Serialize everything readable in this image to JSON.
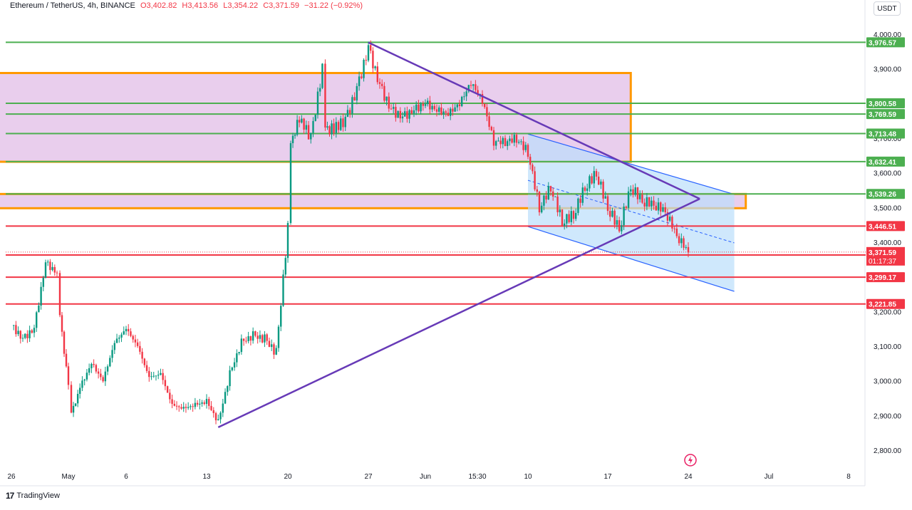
{
  "header": {
    "symbol": "Ethereum / TetherUS, 4h, BINANCE",
    "open": "O3,402.82",
    "high": "H3,413.56",
    "low": "L3,354.22",
    "close": "C3,371.59",
    "change": "−31.22 (−0.92%)",
    "currency": "USDT"
  },
  "footer": {
    "brand": "TradingView"
  },
  "colors": {
    "up": "#089981",
    "down": "#f23645",
    "support_resistance_green": "#4caf50",
    "support_resistance_red": "#f23645",
    "zone_fill": "#e1bee7",
    "zone_border": "#ff9800",
    "channel_fill": "#bbdefb",
    "channel_border": "#2962ff",
    "triangle_line": "#673ab7"
  },
  "chart_data": {
    "type": "candlestick",
    "ylim": [
      2770,
      4030
    ],
    "y_ticks": [
      "4,000.00",
      "3,900.00",
      "3,800.00",
      "3,700.00",
      "3,600.00",
      "3,500.00",
      "3,400.00",
      "3,300.00",
      "3,200.00",
      "3,100.00",
      "3,000.00",
      "2,900.00",
      "2,800.00"
    ],
    "x_ticks": [
      "26",
      "May",
      "6",
      "13",
      "20",
      "27",
      "Jun",
      "15:30",
      "10",
      "17",
      "24",
      "Jul",
      "8"
    ],
    "horizontal_levels": [
      {
        "value": 3976.57,
        "label": "3,976.57",
        "color": "green"
      },
      {
        "value": 3800.58,
        "label": "3,800.58",
        "color": "green"
      },
      {
        "value": 3769.59,
        "label": "3,769.59",
        "color": "green"
      },
      {
        "value": 3713.48,
        "label": "3,713.48",
        "color": "green"
      },
      {
        "value": 3632.41,
        "label": "3,632.41",
        "color": "green"
      },
      {
        "value": 3539.26,
        "label": "3,539.26",
        "color": "green"
      },
      {
        "value": 3446.51,
        "label": "3,446.51",
        "color": "red"
      },
      {
        "value": 3363.04,
        "label": "3,363.04",
        "color": "red"
      },
      {
        "value": 3299.17,
        "label": "3,299.17",
        "color": "red"
      },
      {
        "value": 3221.85,
        "label": "3,221.85",
        "color": "red"
      }
    ],
    "current_price": {
      "value": 3371.59,
      "label": "3,371.59",
      "countdown": "01:17:37"
    },
    "zones": [
      {
        "name": "upper supply box",
        "x_start": "Apr 19",
        "x_end": "Jun 19",
        "y_high": 3888,
        "y_low": 3632
      },
      {
        "name": "lower zone",
        "x_start": "Apr 23",
        "x_end": "Jun 29",
        "y_high": 3539,
        "y_low": 3498
      }
    ],
    "channel": {
      "x_start": "Jun 10",
      "x_end": "Jun 28",
      "top_start": 3712,
      "top_end": 3538,
      "bottom_start": 3445,
      "bottom_end": 3258
    },
    "trendlines": [
      {
        "name": "descending",
        "from": {
          "x": "May 27",
          "y": 3976
        },
        "to": {
          "x": "Jun 25",
          "y": 3525
        }
      },
      {
        "name": "ascending",
        "from": {
          "x": "May 14",
          "y": 2866
        },
        "to": {
          "x": "Jun 25",
          "y": 3525
        }
      }
    ],
    "candles_close_path": [
      {
        "x": "Apr 26",
        "close": 3160
      },
      {
        "x": "Apr 27",
        "close": 3120
      },
      {
        "x": "Apr 28",
        "close": 3150
      },
      {
        "x": "Apr 29",
        "close": 3340
      },
      {
        "x": "Apr 30",
        "close": 3310
      },
      {
        "x": "Apr 30",
        "close": 3180
      },
      {
        "x": "May 1",
        "close": 2990
      },
      {
        "x": "May 1",
        "close": 2900
      },
      {
        "x": "May 2",
        "close": 2980
      },
      {
        "x": "May 3",
        "close": 3050
      },
      {
        "x": "May 4",
        "close": 3000
      },
      {
        "x": "May 5",
        "close": 3110
      },
      {
        "x": "May 6",
        "close": 3150
      },
      {
        "x": "May 7",
        "close": 3100
      },
      {
        "x": "May 8",
        "close": 3010
      },
      {
        "x": "May 9",
        "close": 3020
      },
      {
        "x": "May 10",
        "close": 2930
      },
      {
        "x": "May 11",
        "close": 2920
      },
      {
        "x": "May 12",
        "close": 2930
      },
      {
        "x": "May 13",
        "close": 2940
      },
      {
        "x": "May 14",
        "close": 2880
      },
      {
        "x": "May 15",
        "close": 3020
      },
      {
        "x": "May 16",
        "close": 3110
      },
      {
        "x": "May 17",
        "close": 3130
      },
      {
        "x": "May 18",
        "close": 3120
      },
      {
        "x": "May 19",
        "close": 3080
      },
      {
        "x": "May 20",
        "close": 3440
      },
      {
        "x": "May 20",
        "close": 3680
      },
      {
        "x": "May 21",
        "close": 3760
      },
      {
        "x": "May 22",
        "close": 3700
      },
      {
        "x": "May 23",
        "close": 3900
      },
      {
        "x": "May 23",
        "close": 3720
      },
      {
        "x": "May 24",
        "close": 3730
      },
      {
        "x": "May 25",
        "close": 3750
      },
      {
        "x": "May 26",
        "close": 3840
      },
      {
        "x": "May 27",
        "close": 3960
      },
      {
        "x": "May 28",
        "close": 3850
      },
      {
        "x": "May 29",
        "close": 3780
      },
      {
        "x": "May 30",
        "close": 3760
      },
      {
        "x": "May 31",
        "close": 3780
      },
      {
        "x": "Jun 1",
        "close": 3800
      },
      {
        "x": "Jun 2",
        "close": 3780
      },
      {
        "x": "Jun 3",
        "close": 3770
      },
      {
        "x": "Jun 4",
        "close": 3800
      },
      {
        "x": "Jun 5",
        "close": 3860
      },
      {
        "x": "Jun 6",
        "close": 3810
      },
      {
        "x": "Jun 7",
        "close": 3690
      },
      {
        "x": "Jun 8",
        "close": 3690
      },
      {
        "x": "Jun 9",
        "close": 3700
      },
      {
        "x": "Jun 10",
        "close": 3660
      },
      {
        "x": "Jun 11",
        "close": 3500
      },
      {
        "x": "Jun 12",
        "close": 3560
      },
      {
        "x": "Jun 13",
        "close": 3460
      },
      {
        "x": "Jun 14",
        "close": 3480
      },
      {
        "x": "Jun 15",
        "close": 3560
      },
      {
        "x": "Jun 16",
        "close": 3600
      },
      {
        "x": "Jun 17",
        "close": 3500
      },
      {
        "x": "Jun 18",
        "close": 3440
      },
      {
        "x": "Jun 19",
        "close": 3560
      },
      {
        "x": "Jun 20",
        "close": 3520
      },
      {
        "x": "Jun 21",
        "close": 3510
      },
      {
        "x": "Jun 22",
        "close": 3490
      },
      {
        "x": "Jun 23",
        "close": 3420
      },
      {
        "x": "Jun 24",
        "close": 3372
      }
    ]
  }
}
